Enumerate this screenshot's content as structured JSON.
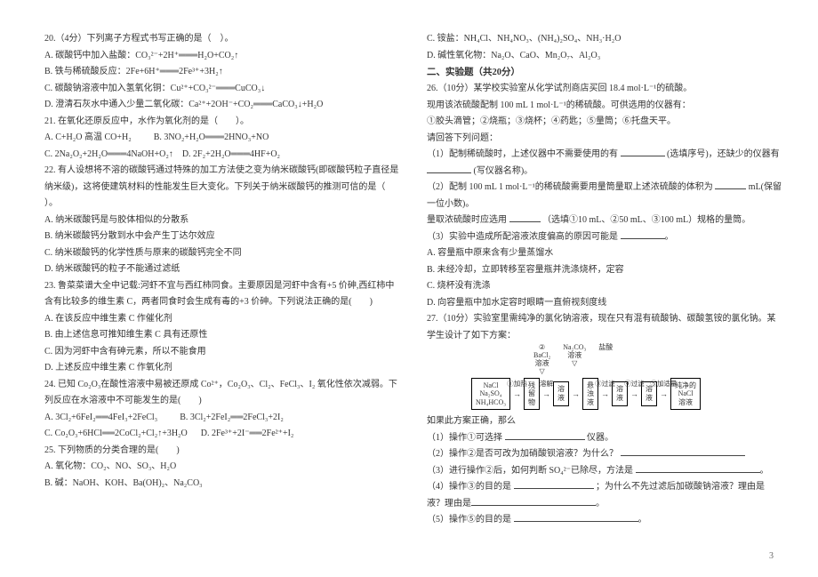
{
  "page_number": "3",
  "left": {
    "q20": {
      "stem": "20.（4分）下列离子方程式书写正确的是（　）。",
      "a": "A. 碳酸钙中加入盐酸：CO₃²⁻+2H⁺═══H₂O+CO₂↑",
      "b": "B. 铁与稀硫酸反应：2Fe+6H⁺═══2Fe³⁺+3H₂↑",
      "c": "C. 碳酸钠溶液中加入氢氧化铜：Cu²⁺+CO₃²⁻═══CuCO₃↓",
      "d": "D. 澄清石灰水中通入少量二氧化碳：Ca²⁺+2OH⁻+CO₂═══CaCO₃↓+H₂O"
    },
    "q21": {
      "stem": "21. 在氧化还原反应中，水作为氧化剂的是（　　）。",
      "a": "A. C+H₂O 高温 CO+H₂",
      "b": "B. 3NO₂+H₂O═══2HNO₃+NO",
      "c": "C. 2Na₂O₂+2H₂O═══4NaOH+O₂↑",
      "d": "D. 2F₂+2H₂O═══4HF+O₂"
    },
    "q22": {
      "stem": "22. 有人设想将不溶的碳酸钙通过特殊的加工方法使之变为纳米碳酸钙(即碳酸钙粒子直径是纳米级)，这将使建筑材料的性能发生巨大变化。下列关于纳米碳酸钙的推测可信的是（　　）。",
      "a": "A. 纳米碳酸钙是与胶体相似的分散系",
      "b": "B. 纳米碳酸钙分散到水中会产生丁达尔效应",
      "c": "C. 纳米碳酸钙的化学性质与原来的碳酸钙完全不同",
      "d": "D. 纳米碳酸钙的粒子不能通过滤纸"
    },
    "q23": {
      "stem": "23. 鲁菜菜谱大全中记载:河虾不宜与西红柿同食。主要原因是河虾中含有+5 价砷,西红柿中含有比较多的维生素 C，两者同食时会生成有毒的+3 价砷。下列说法正确的是(　　)",
      "a": "A. 在该反应中维生素 C 作催化剂",
      "b": "B. 由上述信息可推知维生素 C 具有还原性",
      "c": "C. 因为河虾中含有砷元素，所以不能食用",
      "d": "D. 上述反应中维生素 C 作氧化剂"
    },
    "q24": {
      "stem": "24. 已知 Co₂O₃在酸性溶液中易被还原成 Co²⁺，Co₂O₃、Cl₂、FeCl₃、I₂ 氧化性依次减弱。下列反应在水溶液中不可能发生的是(　　)",
      "a": "A. 3Cl₂+6FeI₂══4FeI₃+2FeCl₃",
      "b": "B. 3Cl₂+2FeI₂══2FeCl₃+2I₂",
      "c": "C. Co₂O₃+6HCl══2CoCl₂+Cl₂↑+3H₂O",
      "d": "D. 2Fe³⁺+2I⁻══2Fe²⁺+I₂"
    },
    "q25": {
      "stem": "25. 下列物质的分类合理的是(　　)",
      "a": "A. 氧化物：CO₂、NO、SO₃、H₂O",
      "b": "B. 碱：NaOH、KOH、Ba(OH)₂、Na₂CO₃"
    }
  },
  "right": {
    "q25c": "C. 铵盐：NH₄Cl、NH₄NO₃、(NH₄)₂SO₄、NH₃·H₂O",
    "q25d": "D. 碱性氧化物：Na₂O、CaO、Mn₂O₇、Al₂O₃",
    "section2": "二、实验题（共20分）",
    "q26": {
      "stem1": "26.（10分）某学校实验室从化学试剂商店买回 18.4 mol·L⁻¹的硫酸。",
      "stem2": "现用该浓硫酸配制 100 mL 1 mol·L⁻¹的稀硫酸。可供选用的仪器有：",
      "stem3": "①胶头滴管；②烧瓶；③烧杯；④药匙；⑤量筒；⑥托盘天平。",
      "stem4": "请回答下列问题：",
      "p1a": "（1）配制稀硫酸时，上述仪器中不需要使用的有",
      "p1b": "(选填序号)，还缺少的仪器有",
      "p1c": "(写仪器名称)。",
      "p2a": "（2）配制 100 mL 1 mol·L⁻¹的稀硫酸需要用量筒量取上述浓硫酸的体积为",
      "p2b": "mL(保留一位小数)。",
      "p2c": "量取浓硫酸时应选用",
      "p2d": "（选填①10 mL、②50 mL、③100 mL）规格的量筒。",
      "p3": "（3）实验中造成所配溶液浓度偏高的原因可能是",
      "a": "A. 容量瓶中原来含有少量蒸馏水",
      "b": "B. 未经冷却，立即转移至容量瓶并洗涤烧杯，定容",
      "c": "C. 烧杯没有洗涤",
      "d": "D. 向容量瓶中加水定容时眼睛一直俯视刻度线"
    },
    "q27": {
      "stem": "27.（10分）实验室里需纯净的氯化钠溶液，现在只有混有硫酸钠、碳酸氢铵的氯化钠。某学生设计了如下方案：",
      "diagram": {
        "start": "NaCl\nNa₂SO₄\nNH₄HCO₃",
        "step1": "①加热",
        "mid1": "残\n留\n物",
        "step2_top": "溶解",
        "mid2": "溶\n液",
        "funnel2": "②\nBaCl₂\n溶液",
        "step3": "③\n过滤",
        "mid3": "悬\n浊\n液",
        "funnel3": "Na₂CO₃\n溶液",
        "step4": "④\n过滤",
        "mid4": "溶\n液",
        "step5_label": "盐酸",
        "step5": "⑤加适量",
        "end": "纯净的\nNaCl\n溶液"
      },
      "p0": "如果此方案正确，那么",
      "p1a": "（1）操作①可选择",
      "p1b": "仪器。",
      "p2": "（2）操作②是否可改为加硝酸钡溶液？为什么？",
      "p3a": "（3）进行操作②后，如何判断 SO₄²⁻已除尽，方法是",
      "p4a": "（4）操作③的目的是",
      "p4b": "；为什么不先过滤后加碳酸钠溶液？理由是",
      "p5": "（5）操作⑤的目的是"
    }
  }
}
